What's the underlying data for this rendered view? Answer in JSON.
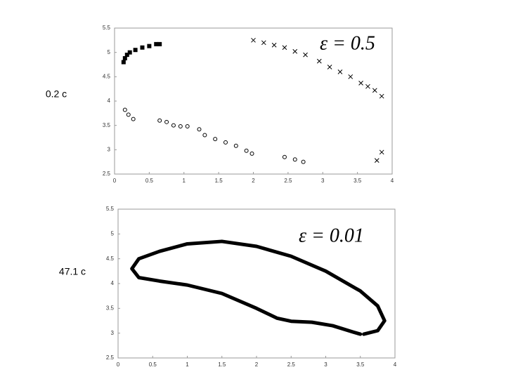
{
  "chart_data": [
    {
      "type": "scatter",
      "label": "0.2 c",
      "annotation": "ε = 0.5",
      "xlim": [
        0,
        4
      ],
      "ylim": [
        2.5,
        5.5
      ],
      "xticks": [
        0,
        0.5,
        1,
        1.5,
        2,
        2.5,
        3,
        3.5,
        4
      ],
      "yticks": [
        2.5,
        3,
        3.5,
        4,
        4.5,
        5,
        5.5
      ],
      "series": [
        {
          "color": "#000000",
          "marker": "square",
          "x": [
            0.13,
            0.15,
            0.18,
            0.22,
            0.3,
            0.4,
            0.5,
            0.6,
            0.65
          ],
          "values": [
            4.8,
            4.88,
            4.95,
            5.0,
            5.05,
            5.1,
            5.13,
            5.17,
            5.17
          ]
        },
        {
          "color": "#000000",
          "marker": "circle",
          "x": [
            0.15,
            0.2,
            0.27,
            0.65,
            0.75,
            0.85,
            0.95,
            1.05,
            1.22,
            1.3,
            1.45,
            1.6,
            1.75,
            1.9,
            1.98,
            2.45,
            2.6,
            2.72
          ],
          "values": [
            3.82,
            3.72,
            3.63,
            3.6,
            3.57,
            3.5,
            3.48,
            3.48,
            3.42,
            3.3,
            3.22,
            3.15,
            3.08,
            2.98,
            2.92,
            2.85,
            2.8,
            2.75
          ]
        },
        {
          "color": "#000000",
          "marker": "cross",
          "x": [
            2.0,
            2.15,
            2.3,
            2.45,
            2.6,
            2.75,
            2.95,
            3.1,
            3.25,
            3.4,
            3.55,
            3.65,
            3.75,
            3.85,
            3.78,
            3.85
          ],
          "values": [
            5.25,
            5.2,
            5.15,
            5.1,
            5.02,
            4.95,
            4.82,
            4.7,
            4.6,
            4.5,
            4.37,
            4.3,
            4.22,
            4.1,
            2.78,
            2.95
          ]
        }
      ]
    },
    {
      "type": "line",
      "label": "47.1 c",
      "annotation": "ε = 0.01",
      "xlim": [
        0,
        4
      ],
      "ylim": [
        2.5,
        5.5
      ],
      "xticks": [
        0,
        0.5,
        1,
        1.5,
        2,
        2.5,
        3,
        3.5,
        4
      ],
      "yticks": [
        2.5,
        3,
        3.5,
        4,
        4.5,
        5,
        5.5
      ],
      "series": [
        {
          "color": "#000000",
          "x": [
            3.55,
            3.75,
            3.85,
            3.75,
            3.5,
            3.0,
            2.5,
            2.0,
            1.5,
            1.0,
            0.6,
            0.3,
            0.2,
            0.3,
            0.6,
            1.0,
            1.5,
            2.0,
            2.3,
            2.5,
            2.8,
            3.1,
            3.4,
            3.5
          ],
          "values": [
            2.98,
            3.05,
            3.25,
            3.55,
            3.85,
            4.25,
            4.55,
            4.75,
            4.85,
            4.8,
            4.65,
            4.5,
            4.3,
            4.12,
            4.05,
            3.97,
            3.8,
            3.5,
            3.3,
            3.24,
            3.22,
            3.15,
            3.02,
            2.98
          ]
        }
      ]
    }
  ]
}
